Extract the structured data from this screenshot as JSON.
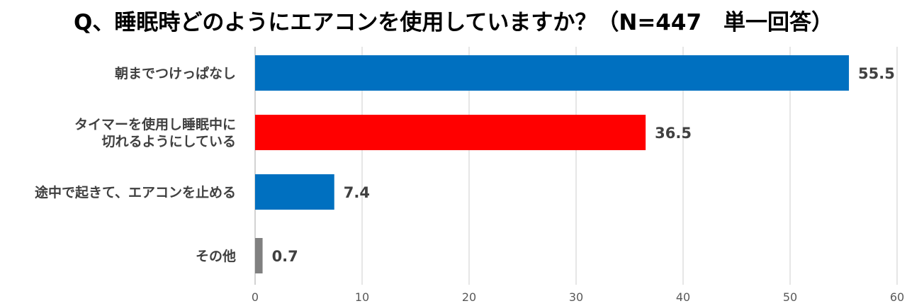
{
  "chart_data": {
    "type": "bar",
    "orientation": "horizontal",
    "title": "Q、睡眠時どのようにエアコンを使用していますか？（N=447　単一回答）",
    "xlabel": "",
    "ylabel": "",
    "xlim": [
      0,
      60
    ],
    "ticks": [
      "0",
      "10",
      "20",
      "30",
      "40",
      "50",
      "60"
    ],
    "grid": true,
    "categories": [
      [
        "朝までつけっぱなし"
      ],
      [
        "タイマーを使用し睡眠中に",
        "切れるようにしている"
      ],
      [
        "途中で起きて、エアコンを止める"
      ],
      [
        "その他"
      ]
    ],
    "values": [
      55.5,
      36.5,
      7.4,
      0.7
    ],
    "value_labels": [
      "55.5",
      "36.5",
      "7.4",
      "0.7"
    ],
    "bar_colors": [
      "#0070c0",
      "#ff0000",
      "#0070c0",
      "#808080"
    ],
    "grid_color": "#d9d9d9"
  }
}
